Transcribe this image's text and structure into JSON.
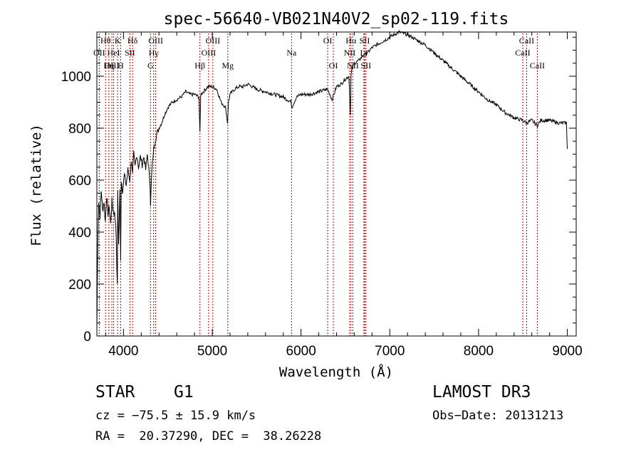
{
  "chart_data": {
    "type": "line",
    "title": "spec-56640-VB021N40V2_sp02-119.fits",
    "xlabel": "Wavelength (Å)",
    "ylabel": "Flux (relative)",
    "xlim": [
      3700,
      9100
    ],
    "ylim": [
      0,
      1170
    ],
    "x_ticks": [
      4000,
      5000,
      6000,
      7000,
      8000,
      9000
    ],
    "x_tick_labels": [
      "4000",
      "5000",
      "6000",
      "7000",
      "8000",
      "9000"
    ],
    "y_ticks": [
      0,
      200,
      400,
      600,
      800,
      1000
    ],
    "y_tick_labels": [
      "0",
      "200",
      "400",
      "600",
      "800",
      "1000"
    ],
    "series": [
      {
        "name": "spectrum",
        "x": [
          3700,
          3712,
          3720,
          3735,
          3750,
          3765,
          3780,
          3795,
          3810,
          3825,
          3840,
          3855,
          3870,
          3885,
          3900,
          3915,
          3930,
          3935,
          3945,
          3960,
          3968,
          3975,
          3990,
          4010,
          4030,
          4050,
          4070,
          4090,
          4102,
          4115,
          4130,
          4150,
          4170,
          4190,
          4210,
          4230,
          4250,
          4270,
          4290,
          4300,
          4305,
          4320,
          4340,
          4360,
          4380,
          4400,
          4430,
          4460,
          4500,
          4550,
          4600,
          4650,
          4700,
          4750,
          4800,
          4850,
          4861,
          4870,
          4900,
          4950,
          5000,
          5050,
          5100,
          5150,
          5172,
          5183,
          5200,
          5250,
          5300,
          5350,
          5400,
          5500,
          5600,
          5700,
          5800,
          5890,
          5895,
          5950,
          6000,
          6100,
          6200,
          6300,
          6350,
          6400,
          6450,
          6500,
          6540,
          6556,
          6563,
          6570,
          6600,
          6650,
          6700,
          6750,
          6800,
          6900,
          7000,
          7100,
          7200,
          7300,
          7400,
          7500,
          7600,
          7700,
          7800,
          7900,
          8000,
          8100,
          8200,
          8300,
          8400,
          8498,
          8542,
          8600,
          8662,
          8700,
          8800,
          8900,
          8990,
          9000
        ],
        "y": [
          20,
          400,
          520,
          460,
          560,
          480,
          520,
          440,
          540,
          470,
          500,
          430,
          520,
          480,
          470,
          420,
          190,
          560,
          350,
          560,
          300,
          600,
          560,
          620,
          580,
          640,
          600,
          680,
          620,
          700,
          650,
          700,
          650,
          690,
          660,
          690,
          640,
          700,
          620,
          580,
          510,
          640,
          720,
          760,
          780,
          800,
          820,
          850,
          880,
          900,
          910,
          920,
          940,
          930,
          930,
          920,
          780,
          930,
          940,
          960,
          960,
          950,
          900,
          880,
          820,
          900,
          930,
          950,
          960,
          960,
          970,
          950,
          940,
          930,
          920,
          900,
          880,
          920,
          930,
          930,
          940,
          950,
          910,
          960,
          970,
          990,
          1000,
          850,
          1000,
          1020,
          1050,
          1060,
          1080,
          1090,
          1110,
          1130,
          1150,
          1170,
          1160,
          1140,
          1120,
          1090,
          1060,
          1030,
          1000,
          970,
          940,
          910,
          890,
          860,
          840,
          830,
          820,
          830,
          810,
          830,
          830,
          820,
          820,
          720
        ]
      }
    ],
    "spectral_lines": [
      {
        "label": "Hθ",
        "wavelength": 3798,
        "row": 1
      },
      {
        "label": "OII",
        "wavelength": 3727,
        "row": 2
      },
      {
        "label": "OIII",
        "wavelength": 3869,
        "row": 3
      },
      {
        "label": "K",
        "wavelength": 3934,
        "row": 1
      },
      {
        "label": "HeI",
        "wavelength": 3889,
        "row": 2
      },
      {
        "label": "Hη",
        "wavelength": 3835,
        "row": 3
      },
      {
        "label": "Hδ",
        "wavelength": 4102,
        "row": 1
      },
      {
        "label": "SII",
        "wavelength": 4072,
        "row": 2
      },
      {
        "label": "H",
        "wavelength": 3968,
        "row": 3
      },
      {
        "label": "OIII",
        "wavelength": 4363,
        "row": 1
      },
      {
        "label": "Hγ",
        "wavelength": 4340,
        "row": 2
      },
      {
        "label": "G",
        "wavelength": 4304,
        "row": 3
      },
      {
        "label": "OIII",
        "wavelength": 5007,
        "row": 1
      },
      {
        "label": "OIII",
        "wavelength": 4959,
        "row": 2
      },
      {
        "label": "Hβ",
        "wavelength": 4861,
        "row": 3
      },
      {
        "label": "Mg",
        "wavelength": 5175,
        "row": 3
      },
      {
        "label": "Na",
        "wavelength": 5893,
        "row": 2
      },
      {
        "label": "OI",
        "wavelength": 6300,
        "row": 1
      },
      {
        "label": "OI",
        "wavelength": 6364,
        "row": 3
      },
      {
        "label": "Hα",
        "wavelength": 6563,
        "row": 1
      },
      {
        "label": "SII",
        "wavelength": 6717,
        "row": 1
      },
      {
        "label": "NII",
        "wavelength": 6548,
        "row": 2
      },
      {
        "label": "Li",
        "wavelength": 6708,
        "row": 2
      },
      {
        "label": "NII",
        "wavelength": 6584,
        "row": 3
      },
      {
        "label": "SII",
        "wavelength": 6731,
        "row": 3
      },
      {
        "label": "CaII",
        "wavelength": 8542,
        "row": 1
      },
      {
        "label": "CaII",
        "wavelength": 8498,
        "row": 2
      },
      {
        "label": "CaII",
        "wavelength": 8662,
        "row": 3
      }
    ]
  },
  "footer": {
    "object_type": "STAR",
    "subclass": "G1",
    "survey": "LAMOST DR3",
    "redshift": "cz = −75.5 ± 15.9 km/s",
    "obs_date": "Obs−Date: 20131213",
    "coords": "RA =  20.37290, DEC =  38.26228"
  }
}
